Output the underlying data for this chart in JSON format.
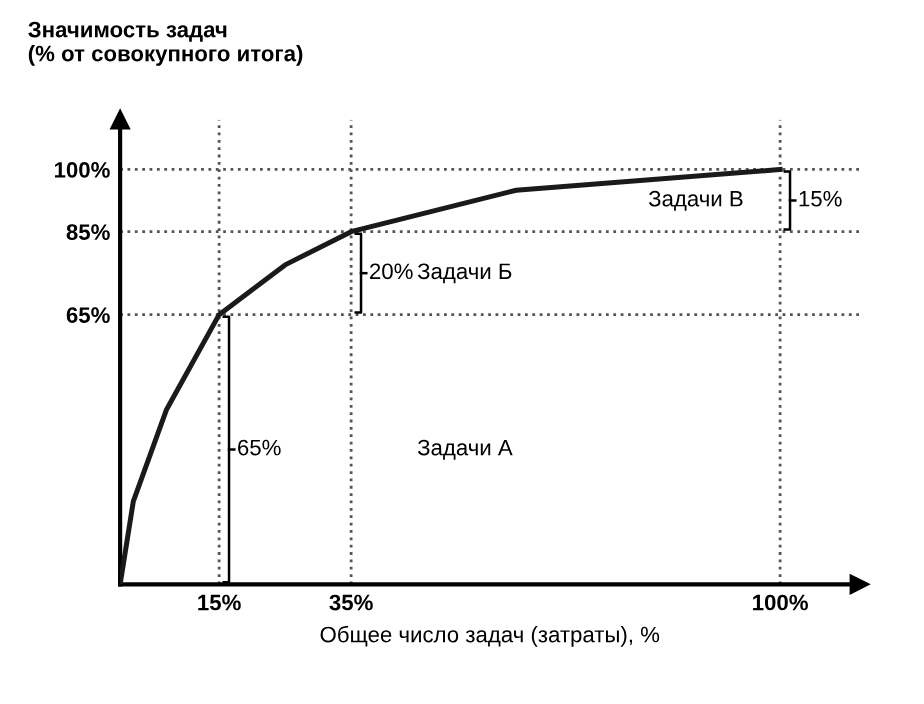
{
  "chart_data": {
    "type": "line",
    "xlabel": "Общее число задач (затраты), %",
    "ylabel": "Значимость задач\n(% от совокупного итога)",
    "x": [
      0,
      2,
      7,
      15,
      25,
      35,
      60,
      100
    ],
    "series": [
      {
        "color": "#1a1a1a",
        "values": [
          0,
          20,
          42,
          65,
          77,
          85,
          95,
          100
        ]
      }
    ],
    "xlim": [
      0,
      112
    ],
    "ylim": [
      0,
      112
    ],
    "xticks": [
      {
        "value": 15,
        "label": "15%"
      },
      {
        "value": 35,
        "label": "35%"
      },
      {
        "value": 100,
        "label": "100%"
      }
    ],
    "yticks": [
      {
        "value": 65,
        "label": "65%"
      },
      {
        "value": 85,
        "label": "85%"
      },
      {
        "value": 100,
        "label": "100%"
      }
    ],
    "ref_lines": [
      {
        "axis": "x",
        "value": 15,
        "color": "#555555",
        "line_style": "dotted"
      },
      {
        "axis": "x",
        "value": 35,
        "color": "#555555",
        "line_style": "dotted"
      },
      {
        "axis": "x",
        "value": 100,
        "color": "#555555",
        "line_style": "dotted"
      },
      {
        "axis": "y",
        "value": 65,
        "color": "#555555",
        "line_style": "dotted"
      },
      {
        "axis": "y",
        "value": 85,
        "color": "#555555",
        "line_style": "dotted"
      },
      {
        "axis": "y",
        "value": 100,
        "color": "#555555",
        "line_style": "dotted"
      }
    ],
    "annotations": [
      {
        "text": "65%",
        "x": 15,
        "y": 32.5
      },
      {
        "text": "20%",
        "x": 35,
        "y": 75
      },
      {
        "text": "15%",
        "x": 100,
        "y": 92.5
      },
      "Задачи А",
      "Задачи Б",
      "Задачи В"
    ],
    "grid": false,
    "marker": "none",
    "line_style": "solid"
  }
}
